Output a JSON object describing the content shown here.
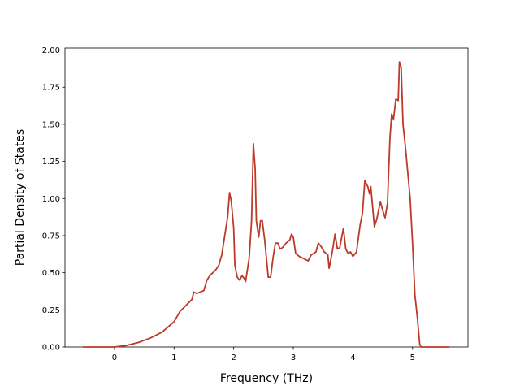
{
  "chart_data": {
    "type": "line",
    "xlabel": "Frequency (THz)",
    "ylabel": "Partial Density of States",
    "x": [
      -0.53,
      0,
      0.2,
      0.4,
      0.6,
      0.8,
      1.0,
      1.1,
      1.2,
      1.3,
      1.33,
      1.38,
      1.5,
      1.55,
      1.6,
      1.7,
      1.75,
      1.8,
      1.85,
      1.9,
      1.93,
      1.96,
      2.0,
      2.02,
      2.06,
      2.1,
      2.14,
      2.18,
      2.2,
      2.26,
      2.3,
      2.33,
      2.36,
      2.38,
      2.42,
      2.45,
      2.48,
      2.52,
      2.58,
      2.62,
      2.66,
      2.7,
      2.74,
      2.78,
      2.82,
      2.88,
      2.94,
      2.97,
      3.0,
      3.04,
      3.1,
      3.2,
      3.25,
      3.3,
      3.38,
      3.42,
      3.46,
      3.52,
      3.58,
      3.6,
      3.65,
      3.7,
      3.74,
      3.78,
      3.84,
      3.88,
      3.92,
      3.96,
      4.0,
      4.06,
      4.12,
      4.16,
      4.2,
      4.25,
      4.28,
      4.3,
      4.36,
      4.4,
      4.46,
      4.5,
      4.54,
      4.58,
      4.62,
      4.65,
      4.68,
      4.72,
      4.76,
      4.78,
      4.81,
      4.84,
      4.88,
      4.96,
      5.0,
      5.04,
      5.08,
      5.12,
      5.14,
      5.62
    ],
    "series": [
      {
        "color": "#bb3a2a",
        "values": [
          0,
          0,
          0.01,
          0.03,
          0.06,
          0.1,
          0.17,
          0.24,
          0.28,
          0.32,
          0.37,
          0.36,
          0.38,
          0.45,
          0.48,
          0.52,
          0.55,
          0.62,
          0.75,
          0.88,
          1.04,
          0.98,
          0.8,
          0.55,
          0.47,
          0.45,
          0.48,
          0.46,
          0.44,
          0.6,
          0.85,
          1.37,
          1.2,
          0.85,
          0.74,
          0.85,
          0.85,
          0.72,
          0.47,
          0.47,
          0.6,
          0.7,
          0.7,
          0.66,
          0.67,
          0.7,
          0.72,
          0.76,
          0.74,
          0.63,
          0.61,
          0.59,
          0.58,
          0.62,
          0.64,
          0.7,
          0.68,
          0.64,
          0.62,
          0.53,
          0.63,
          0.76,
          0.66,
          0.67,
          0.8,
          0.66,
          0.63,
          0.64,
          0.61,
          0.64,
          0.82,
          0.9,
          1.12,
          1.08,
          1.03,
          1.08,
          0.81,
          0.86,
          0.98,
          0.92,
          0.87,
          0.97,
          1.4,
          1.57,
          1.53,
          1.67,
          1.66,
          1.92,
          1.88,
          1.5,
          1.35,
          1.0,
          0.7,
          0.35,
          0.2,
          0.02,
          0,
          0
        ]
      }
    ],
    "xlim": [
      -0.83,
      5.93
    ],
    "ylim": [
      0,
      2.014
    ],
    "xticks": [
      0,
      1,
      2,
      3,
      4,
      5
    ],
    "yticks": [
      {
        "value": 0,
        "label": "0.00"
      },
      {
        "value": 0.25,
        "label": "0.25"
      },
      {
        "value": 0.5,
        "label": "0.50"
      },
      {
        "value": 0.75,
        "label": "0.75"
      },
      {
        "value": 1,
        "label": "1.00"
      },
      {
        "value": 1.25,
        "label": "1.25"
      },
      {
        "value": 1.5,
        "label": "1.50"
      },
      {
        "value": 1.75,
        "label": "1.75"
      },
      {
        "value": 2,
        "label": "2.00"
      }
    ]
  }
}
